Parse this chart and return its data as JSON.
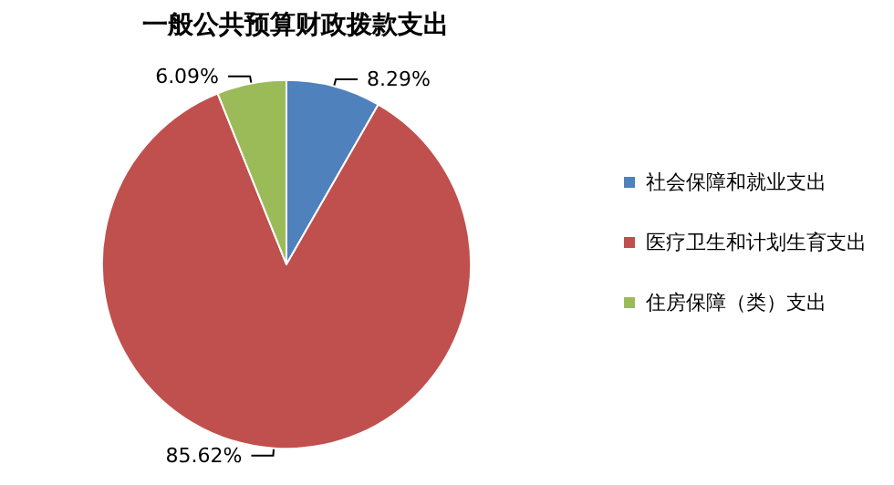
{
  "chart_data": {
    "type": "pie",
    "title": "一般公共预算财政拨款支出",
    "categories": [
      "社会保障和就业支出",
      "医疗卫生和计划生育支出",
      "住房保障（类）支出"
    ],
    "values": [
      8.29,
      85.62,
      6.09
    ],
    "value_labels": [
      "8.29%",
      "85.62%",
      "6.09%"
    ],
    "colors": [
      "#4f81bd",
      "#c0504d",
      "#9bbb59"
    ],
    "legend": "right"
  }
}
